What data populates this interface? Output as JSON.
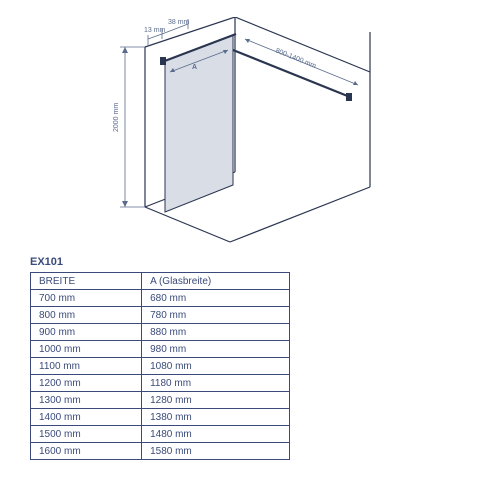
{
  "diagram": {
    "type": "isometric-technical-drawing",
    "line_color": "#2a3550",
    "dim_color": "#5a6b8c",
    "glass_fill": "#d8dde6",
    "background": "#ffffff",
    "height_label": "2000 mm",
    "top_bar_label": "800-1400 mm",
    "offset1_label": "13 mm",
    "offset2_label": "38 mm",
    "panel_label": "A"
  },
  "table": {
    "model": "EX101",
    "border_color": "#3a4a7a",
    "text_color": "#3a4a7a",
    "header_breite": "BREITE",
    "header_a": "A (Glasbreite)",
    "rows": [
      {
        "breite": "700 mm",
        "a": "680 mm"
      },
      {
        "breite": "800 mm",
        "a": "780 mm"
      },
      {
        "breite": "900 mm",
        "a": "880 mm"
      },
      {
        "breite": "1000 mm",
        "a": "980 mm"
      },
      {
        "breite": "1100 mm",
        "a": "1080 mm"
      },
      {
        "breite": "1200 mm",
        "a": "1180 mm"
      },
      {
        "breite": "1300 mm",
        "a": "1280 mm"
      },
      {
        "breite": "1400 mm",
        "a": "1380 mm"
      },
      {
        "breite": "1500 mm",
        "a": "1480 mm"
      },
      {
        "breite": "1600 mm",
        "a": "1580 mm"
      }
    ]
  }
}
